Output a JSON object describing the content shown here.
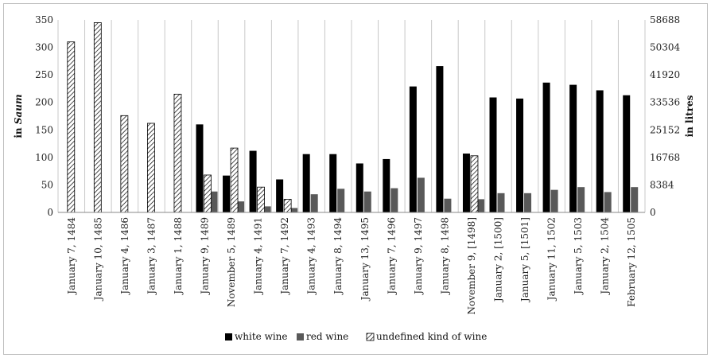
{
  "chart_data": {
    "type": "bar",
    "categories": [
      "January 7, 1484",
      "January 10, 1485",
      "January 4, 1486",
      "January 3, 1487",
      "January 1, 1488",
      "January 9, 1489",
      "November 5, 1489",
      "January 4, 1491",
      "January 7, 1492",
      "January 4, 1493",
      "January 8, 1494",
      "January 13, 1495",
      "January 7, 1496",
      "January 9, 1497",
      "January 8, 1498",
      "November 9, [1498]",
      "January 2, [1500]",
      "January 5, [1501]",
      "January 11, 1502",
      "January 5, 1503",
      "January 2, 1504",
      "February 12, 1505"
    ],
    "series": [
      {
        "name": "white wine",
        "color": "#000000",
        "pattern": "solid",
        "values": [
          0,
          0,
          0,
          0,
          0,
          160,
          67,
          112,
          60,
          106,
          106,
          89,
          97,
          229,
          266,
          107,
          209,
          207,
          236,
          232,
          222,
          213
        ]
      },
      {
        "name": "red wine",
        "color": "#595959",
        "pattern": "solid",
        "values": [
          0,
          0,
          0,
          0,
          0,
          38,
          20,
          11,
          8,
          33,
          43,
          38,
          44,
          63,
          25,
          24,
          35,
          35,
          41,
          46,
          37,
          46
        ]
      },
      {
        "name": "undefined kind of wine",
        "color": "#000000",
        "pattern": "diagonal-hatch",
        "values": [
          310,
          345,
          176,
          162,
          215,
          68,
          117,
          46,
          24,
          0,
          0,
          0,
          0,
          0,
          0,
          103,
          0,
          0,
          0,
          0,
          0,
          0
        ]
      }
    ],
    "ylabel_left_prefix": "in ",
    "ylabel_left_unit": "Saum",
    "ylabel_right": "in litres",
    "ylim": [
      0,
      350
    ],
    "left_ticks": [
      "0",
      "50",
      "100",
      "150",
      "200",
      "250",
      "300",
      "350"
    ],
    "right_ticks": [
      "0",
      "8384",
      "16768",
      "25152",
      "33536",
      "41920",
      "50304",
      "58688"
    ],
    "grid": "vertical",
    "legend_position": "bottom"
  }
}
